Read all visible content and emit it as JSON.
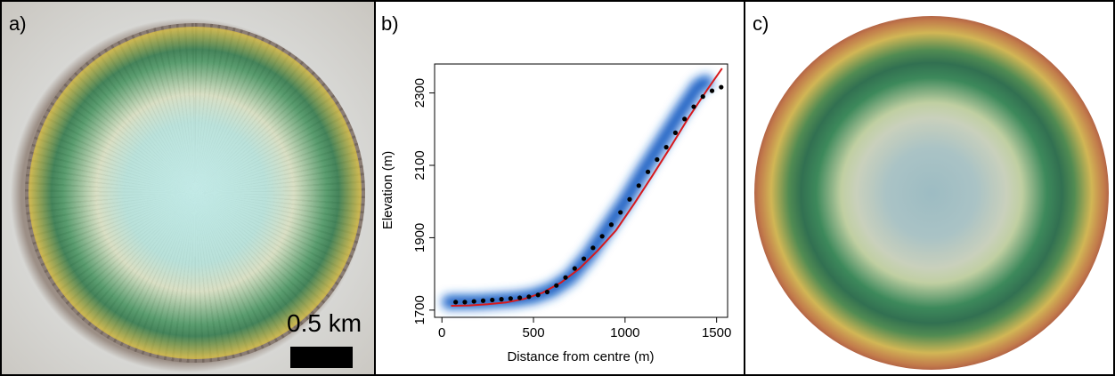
{
  "panels": {
    "a": {
      "label": "a)",
      "scale_bar": "0.5 km"
    },
    "b": {
      "label": "b)"
    },
    "c": {
      "label": "c)"
    }
  },
  "colors": {
    "fit_line": "#d7191c",
    "points": "#000000",
    "density": "#1f6fd6"
  },
  "chart_data": {
    "type": "scatter",
    "xlabel": "Distance from centre (m)",
    "ylabel": "Elevation (m)",
    "xlim": [
      -40,
      1560
    ],
    "ylim": [
      1680,
      2380
    ],
    "xticks": [
      0,
      500,
      1000,
      1500
    ],
    "yticks": [
      1700,
      1900,
      2100,
      2300
    ],
    "grid": false,
    "series": [
      {
        "kind": "points",
        "x": [
          75,
          125,
          175,
          225,
          275,
          325,
          375,
          425,
          475,
          525,
          575,
          625,
          675,
          725,
          775,
          825,
          875,
          925,
          975,
          1025,
          1075,
          1125,
          1175,
          1225,
          1275,
          1325,
          1375,
          1425,
          1475,
          1525
        ],
        "y": [
          1722,
          1722,
          1724,
          1726,
          1728,
          1730,
          1732,
          1734,
          1737,
          1742,
          1750,
          1768,
          1790,
          1815,
          1842,
          1872,
          1904,
          1936,
          1970,
          2006,
          2044,
          2082,
          2116,
          2150,
          2190,
          2228,
          2262,
          2290,
          2306,
          2316
        ]
      },
      {
        "kind": "fit_line",
        "x": [
          50,
          150,
          250,
          350,
          450,
          550,
          650,
          750,
          850,
          950,
          1050,
          1150,
          1250,
          1350,
          1450,
          1530
        ],
        "y": [
          1712,
          1713,
          1716,
          1721,
          1731,
          1748,
          1776,
          1814,
          1864,
          1920,
          1994,
          2072,
          2152,
          2234,
          2310,
          2368
        ]
      },
      {
        "kind": "density_band",
        "x": [
          40,
          200,
          400,
          500,
          600,
          700,
          800,
          900,
          1000,
          1100,
          1200,
          1300,
          1400,
          1440
        ],
        "y": [
          1722,
          1723,
          1730,
          1738,
          1756,
          1790,
          1850,
          1925,
          2000,
          2085,
          2165,
          2245,
          2320,
          2330
        ]
      }
    ]
  }
}
